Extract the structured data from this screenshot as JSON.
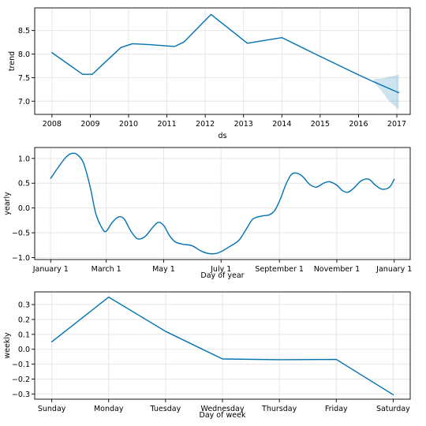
{
  "colors": {
    "line": "#0072B2",
    "band": "#0072B2",
    "band_opacity": 0.2,
    "grid": "#e6e6e6",
    "axis": "#000000"
  },
  "chart_data": [
    {
      "type": "line",
      "id": "trend",
      "xlabel": "ds",
      "ylabel": "trend",
      "xlim": [
        2007.55,
        2017.35
      ],
      "ylim": [
        6.72,
        8.98
      ],
      "grid": true,
      "x_ticks": [
        2008,
        2009,
        2010,
        2011,
        2012,
        2013,
        2014,
        2015,
        2016,
        2017
      ],
      "x_tick_labels": [
        "2008",
        "2009",
        "2010",
        "2011",
        "2012",
        "2013",
        "2014",
        "2015",
        "2016",
        "2017"
      ],
      "y_ticks": [
        7.0,
        7.5,
        8.0,
        8.5
      ],
      "y_tick_labels": [
        "7.0",
        "7.5",
        "8.0",
        "8.5"
      ],
      "x": [
        2008.0,
        2008.8,
        2009.05,
        2009.8,
        2010.1,
        2010.55,
        2011.2,
        2011.45,
        2012.15,
        2013.1,
        2014.0,
        2015.0,
        2016.0,
        2016.4,
        2017.05
      ],
      "y": [
        8.03,
        7.57,
        7.57,
        8.14,
        8.22,
        8.2,
        8.16,
        8.26,
        8.84,
        8.23,
        8.35,
        7.95,
        7.56,
        7.41,
        7.18
      ],
      "uncertainty": {
        "x": [
          2016.4,
          2016.6,
          2016.8,
          2017.05
        ],
        "upper": [
          7.47,
          7.48,
          7.52,
          7.56
        ],
        "lower": [
          7.41,
          7.22,
          7.0,
          6.82
        ]
      }
    },
    {
      "type": "line",
      "id": "yearly",
      "xlabel": "Day of year",
      "ylabel": "yearly",
      "xlim": [
        -17,
        382
      ],
      "ylim": [
        -1.04,
        1.22
      ],
      "grid": true,
      "x_ticks": [
        0,
        59,
        120,
        181,
        243,
        304,
        365
      ],
      "x_tick_labels": [
        "January 1",
        "March 1",
        "May 1",
        "July 1",
        "September 1",
        "November 1",
        "January 1"
      ],
      "y_ticks": [
        -1.0,
        -0.5,
        0.0,
        0.5,
        1.0
      ],
      "y_tick_labels": [
        "−1.0",
        "−0.5",
        "0.0",
        "0.5",
        "1.0"
      ],
      "x": [
        0,
        8,
        16,
        22,
        28,
        35,
        42,
        48,
        55,
        59,
        65,
        72,
        78,
        85,
        92,
        100,
        108,
        114,
        120,
        126,
        132,
        140,
        150,
        160,
        168,
        175,
        181,
        190,
        200,
        208,
        215,
        225,
        232,
        238,
        244,
        250,
        256,
        262,
        268,
        275,
        282,
        290,
        296,
        304,
        310,
        316,
        322,
        330,
        338,
        345,
        352,
        360,
        365
      ],
      "y": [
        0.6,
        0.82,
        1.02,
        1.1,
        1.08,
        0.9,
        0.42,
        -0.12,
        -0.42,
        -0.47,
        -0.3,
        -0.18,
        -0.22,
        -0.46,
        -0.62,
        -0.58,
        -0.4,
        -0.29,
        -0.35,
        -0.55,
        -0.68,
        -0.73,
        -0.76,
        -0.87,
        -0.92,
        -0.92,
        -0.88,
        -0.78,
        -0.65,
        -0.42,
        -0.22,
        -0.16,
        -0.14,
        -0.05,
        0.18,
        0.48,
        0.68,
        0.7,
        0.63,
        0.48,
        0.42,
        0.5,
        0.53,
        0.46,
        0.35,
        0.32,
        0.4,
        0.55,
        0.58,
        0.46,
        0.38,
        0.42,
        0.58
      ]
    },
    {
      "type": "line",
      "id": "weekly",
      "xlabel": "Day of week",
      "ylabel": "weekly",
      "xlim": [
        -0.3,
        6.3
      ],
      "ylim": [
        -0.335,
        0.385
      ],
      "grid": true,
      "x_ticks": [
        0,
        1,
        2,
        3,
        4,
        5,
        6
      ],
      "x_tick_labels": [
        "Sunday",
        "Monday",
        "Tuesday",
        "Wednesday",
        "Thursday",
        "Friday",
        "Saturday"
      ],
      "y_ticks": [
        -0.3,
        -0.2,
        -0.1,
        0.0,
        0.1,
        0.2,
        0.3
      ],
      "y_tick_labels": [
        "−0.3",
        "−0.2",
        "−0.1",
        "0.0",
        "0.1",
        "0.2",
        "0.3"
      ],
      "x": [
        0,
        1,
        2,
        3,
        4,
        5,
        6
      ],
      "y": [
        0.05,
        0.35,
        0.12,
        -0.065,
        -0.07,
        -0.068,
        -0.305
      ]
    }
  ]
}
